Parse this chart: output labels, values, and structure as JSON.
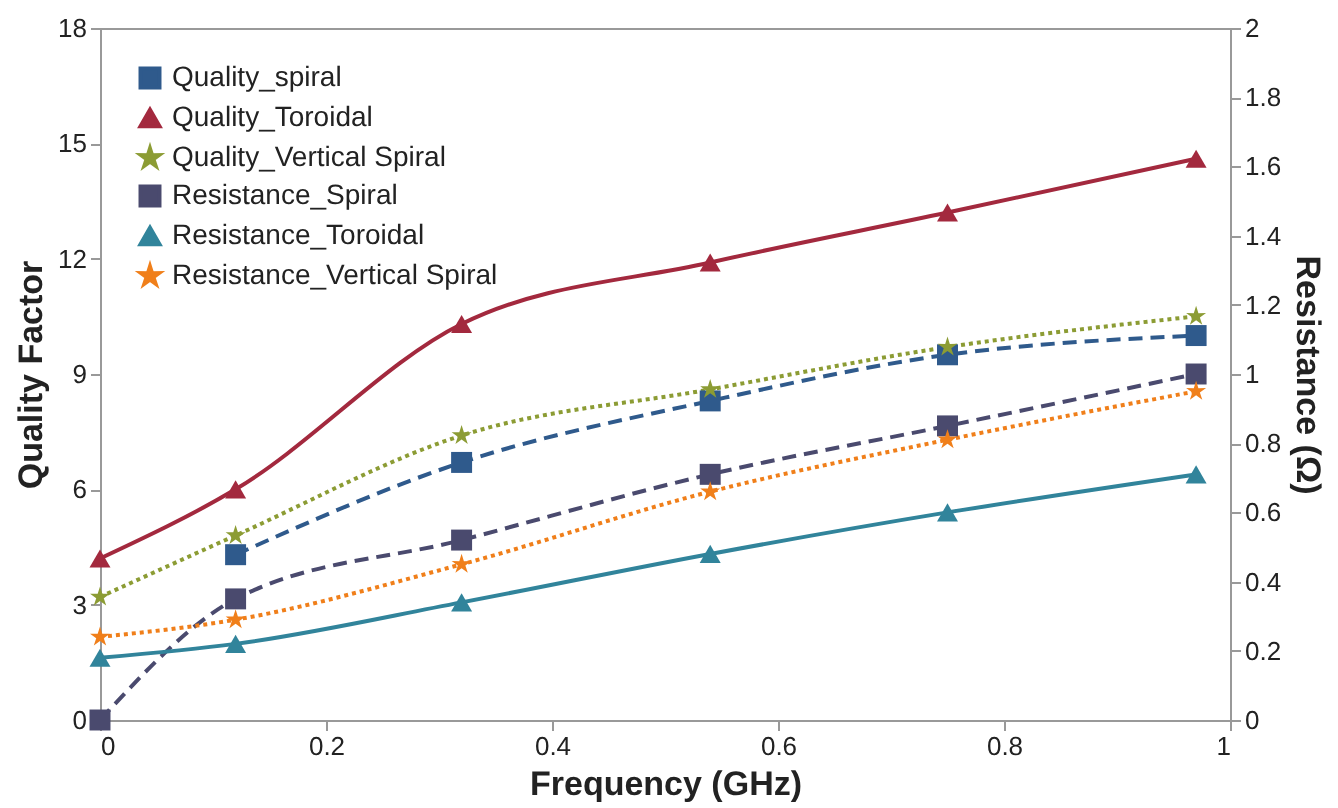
{
  "chart_data": {
    "type": "line",
    "xlabel": "Frequency (GHz)",
    "ylabel": "Quality Factor",
    "y2label": "Resistance (Ω)",
    "x": [
      0,
      0.12,
      0.32,
      0.54,
      0.75,
      0.97
    ],
    "xlim": [
      0,
      1
    ],
    "xticks": [
      0,
      0.2,
      0.4,
      0.6,
      0.8,
      1
    ],
    "ylim": [
      0,
      18
    ],
    "yticks": [
      0,
      3,
      6,
      9,
      12,
      15,
      18
    ],
    "y2lim": [
      0,
      2
    ],
    "y2ticks": [
      0,
      0.2,
      0.4,
      0.6,
      0.8,
      1,
      1.2,
      1.4,
      1.6,
      1.8,
      2
    ],
    "legend": "top left",
    "grid": false,
    "series": [
      {
        "name": "Quality_spiral",
        "color": "#2f5a8c",
        "marker": "square",
        "line_style": "dashed",
        "values": [
          null,
          4.3,
          6.7,
          8.3,
          9.5,
          10.0
        ]
      },
      {
        "name": "Quality_Toroidal",
        "color": "#a3293e",
        "marker": "triangle",
        "line_style": "solid",
        "values": [
          4.2,
          6.0,
          10.3,
          11.9,
          13.2,
          14.6
        ]
      },
      {
        "name": "Quality_Vertical Spiral",
        "color": "#8c9c34",
        "marker": "star",
        "line_style": "dotted",
        "values": [
          3.2,
          4.8,
          7.4,
          8.6,
          9.7,
          10.5
        ]
      },
      {
        "name": "Resistance_Spiral",
        "color": "#4a4a6e",
        "marker": "square",
        "line_style": "dashed",
        "axis": "y2",
        "values": [
          0.0,
          0.35,
          0.52,
          0.71,
          0.85,
          1.0
        ]
      },
      {
        "name": "Resistance_Toroidal",
        "color": "#31849b",
        "marker": "triangle",
        "line_style": "solid",
        "axis": "y2",
        "values": [
          0.18,
          0.22,
          0.34,
          0.48,
          0.6,
          0.71
        ]
      },
      {
        "name": "Resistance_Vertical Spiral",
        "color": "#f07f1a",
        "marker": "star",
        "line_style": "dotted",
        "axis": "y2",
        "values": [
          0.24,
          0.29,
          0.45,
          0.66,
          0.81,
          0.95
        ]
      }
    ]
  }
}
